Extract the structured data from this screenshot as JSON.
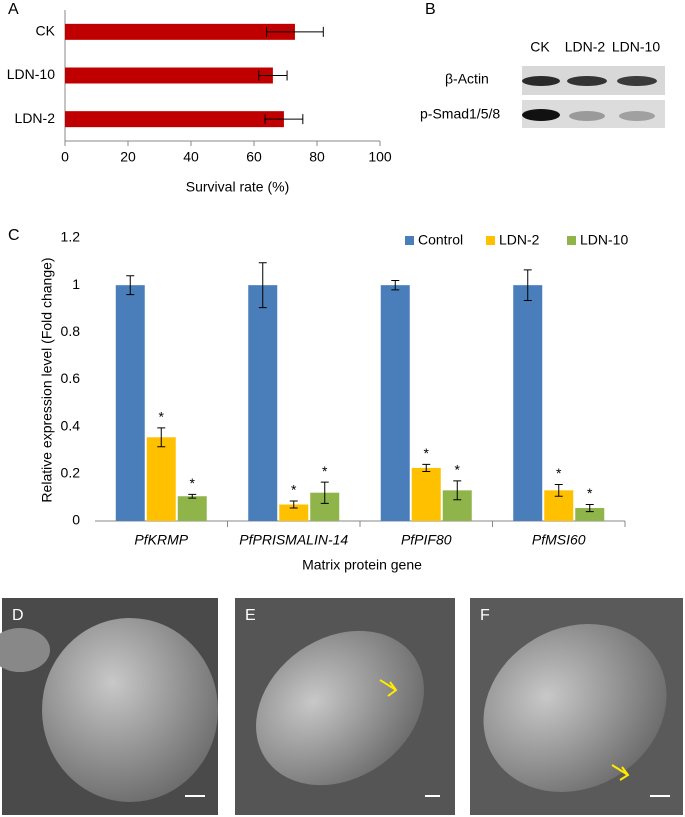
{
  "chart_data": [
    {
      "type": "hbar",
      "panel": "A",
      "categories": [
        "CK",
        "LDN-10",
        "LDN-2"
      ],
      "series": [
        {
          "color": "#c00000",
          "values": [
            73,
            66,
            69.5
          ],
          "errors": [
            9,
            4.5,
            6
          ]
        }
      ],
      "xlim": [
        0,
        100
      ],
      "xticks": [
        0,
        20,
        40,
        60,
        80,
        100
      ],
      "xlabel": "Survival rate (%)"
    },
    {
      "type": "bar",
      "panel": "C",
      "categories": [
        "PfKRMP",
        "PfPRISMALIN-14",
        "PfPIF80",
        "PfMSI60"
      ],
      "series": [
        {
          "name": "Control",
          "color": "#4a7ebb",
          "values": [
            1,
            1,
            1,
            1
          ],
          "errors": [
            0.04,
            0.095,
            0.02,
            0.065
          ]
        },
        {
          "name": "LDN-2",
          "color": "#ffc000",
          "values": [
            0.355,
            0.07,
            0.225,
            0.13
          ],
          "errors": [
            0.04,
            0.015,
            0.015,
            0.025
          ],
          "markers": [
            "*",
            "*",
            "*",
            "*"
          ]
        },
        {
          "name": "LDN-10",
          "color": "#8eb44a",
          "values": [
            0.105,
            0.12,
            0.13,
            0.055
          ],
          "errors": [
            0.008,
            0.045,
            0.04,
            0.015
          ],
          "markers": [
            "*",
            "*",
            "*",
            "*"
          ]
        }
      ],
      "ylim": [
        0,
        1.2
      ],
      "yticks": [
        0,
        0.2,
        0.4,
        0.6,
        0.8,
        1,
        1.2
      ],
      "ylabel": "Relative expression level (Fold change)",
      "xlabel": "Matrix protein gene"
    }
  ],
  "blot": {
    "panel": "B",
    "lanes": [
      "CK",
      "LDN-2",
      "LDN-10"
    ],
    "rows": [
      "β-Actin",
      "p-Smad1/5/8"
    ]
  },
  "micrographs": [
    {
      "panel": "D"
    },
    {
      "panel": "E"
    },
    {
      "panel": "F"
    }
  ]
}
